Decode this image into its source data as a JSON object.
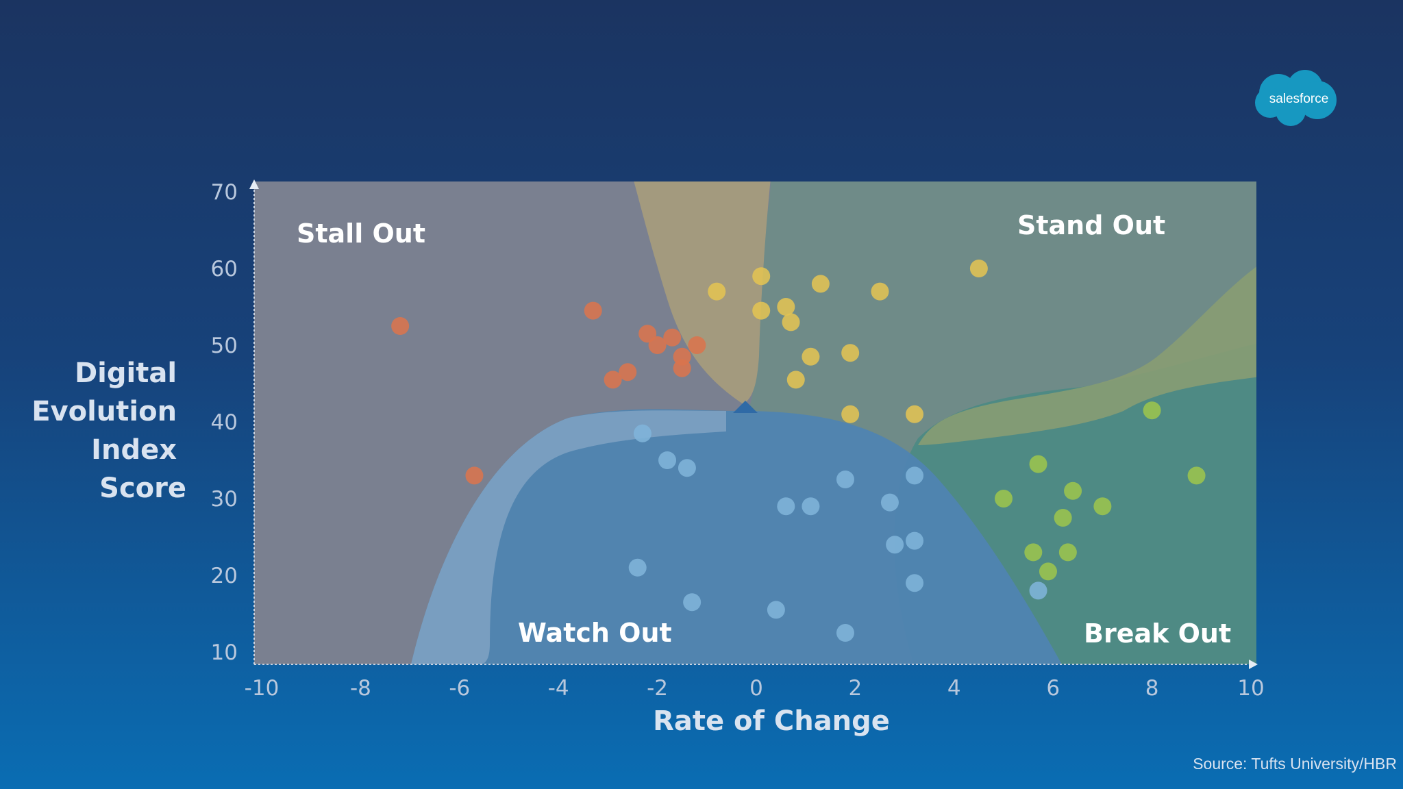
{
  "brand": {
    "logo_text": "salesforce",
    "logo_color": "#1798c1"
  },
  "source": "Source: Tufts University/HBR",
  "quadrant_labels": {
    "stall_out": "Stall Out",
    "stand_out": "Stand Out",
    "watch_out": "Watch Out",
    "break_out": "Break Out"
  },
  "chart_data": {
    "type": "scatter",
    "title": "",
    "xlabel": "Rate of Change",
    "ylabel": [
      "Digital",
      "Evolution",
      "Index",
      "Score"
    ],
    "xlim": [
      -10,
      10
    ],
    "ylim": [
      10,
      70
    ],
    "x_ticks": [
      -10,
      -8,
      -6,
      -4,
      -2,
      0,
      2,
      4,
      6,
      8,
      10
    ],
    "y_ticks": [
      10,
      20,
      30,
      40,
      50,
      60,
      70
    ],
    "grid": false,
    "colors": {
      "stall_out": "#d9744d",
      "stand_out": "#e2c353",
      "watch_out": "#7fb4da",
      "break_out": "#9cc44d"
    },
    "series": [
      {
        "group": "stall_out",
        "points": [
          [
            -7.2,
            52.5
          ],
          [
            -5.7,
            33
          ],
          [
            -3.3,
            54.5
          ],
          [
            -2.2,
            51.5
          ],
          [
            -2.0,
            50
          ],
          [
            -1.7,
            51
          ],
          [
            -1.5,
            48.5
          ],
          [
            -1.5,
            47
          ],
          [
            -1.2,
            50
          ],
          [
            -2.6,
            46.5
          ],
          [
            -2.9,
            45.5
          ]
        ]
      },
      {
        "group": "stand_out",
        "points": [
          [
            -0.8,
            57
          ],
          [
            0.1,
            59
          ],
          [
            0.1,
            54.5
          ],
          [
            0.6,
            55
          ],
          [
            0.7,
            53
          ],
          [
            1.3,
            58
          ],
          [
            2.5,
            57
          ],
          [
            4.5,
            60
          ],
          [
            0.8,
            45.5
          ],
          [
            1.1,
            48.5
          ],
          [
            1.9,
            49
          ],
          [
            1.9,
            41
          ],
          [
            3.2,
            41
          ]
        ]
      },
      {
        "group": "watch_out",
        "points": [
          [
            -2.3,
            38.5
          ],
          [
            -1.8,
            35
          ],
          [
            -1.4,
            34
          ],
          [
            0.6,
            29
          ],
          [
            1.1,
            29
          ],
          [
            1.8,
            32.5
          ],
          [
            2.7,
            29.5
          ],
          [
            2.8,
            24
          ],
          [
            3.2,
            33
          ],
          [
            3.2,
            24.5
          ],
          [
            3.2,
            19
          ],
          [
            -2.4,
            21
          ],
          [
            -1.3,
            16.5
          ],
          [
            0.4,
            15.5
          ],
          [
            1.8,
            12.5
          ],
          [
            5.7,
            18
          ]
        ]
      },
      {
        "group": "break_out",
        "points": [
          [
            5.0,
            30
          ],
          [
            5.7,
            34.5
          ],
          [
            6.4,
            31
          ],
          [
            6.2,
            27.5
          ],
          [
            7.0,
            29
          ],
          [
            5.6,
            23
          ],
          [
            6.3,
            23
          ],
          [
            5.9,
            20.5
          ],
          [
            8.0,
            41.5
          ],
          [
            8.9,
            33
          ]
        ]
      }
    ]
  }
}
